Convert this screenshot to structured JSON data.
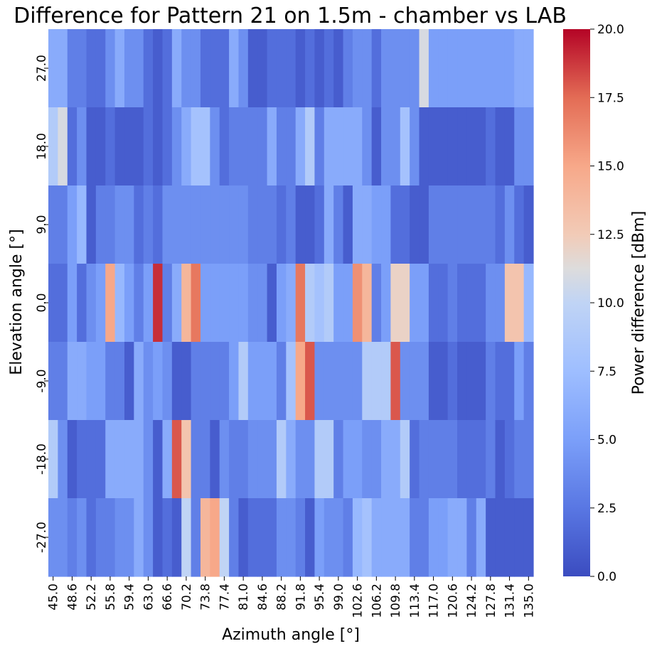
{
  "chart_data": {
    "type": "heatmap",
    "title": "Difference for Pattern 21 on 1.5m - chamber vs LAB",
    "xlabel": "Azimuth angle [°]",
    "ylabel": "Elevation angle [°]",
    "colorbar_label": "Power difference [dBm]",
    "colormap": "coolwarm",
    "vmin": 0.0,
    "vmax": 20.0,
    "x_tick_labels": [
      "45.0",
      "48.6",
      "52.2",
      "55.8",
      "59.4",
      "63.0",
      "66.6",
      "70.2",
      "73.8",
      "77.4",
      "81.0",
      "84.6",
      "88.2",
      "91.8",
      "95.4",
      "99.0",
      "102.6",
      "106.2",
      "109.8",
      "113.4",
      "117.0",
      "120.6",
      "124.2",
      "127.8",
      "131.4",
      "135.0"
    ],
    "y_tick_labels": [
      "27.0",
      "18.0",
      "9.0",
      "0.0",
      "-9.0",
      "-18.0",
      "-27.0"
    ],
    "colorbar_ticks": [
      "0.0",
      "2.5",
      "5.0",
      "7.5",
      "10.0",
      "12.5",
      "15.0",
      "17.5",
      "20.0"
    ],
    "azimuth_values": [
      45.0,
      46.8,
      48.6,
      50.4,
      52.2,
      54.0,
      55.8,
      57.6,
      59.4,
      61.2,
      63.0,
      64.8,
      66.6,
      68.4,
      70.2,
      72.0,
      73.8,
      75.6,
      77.4,
      79.2,
      81.0,
      82.8,
      84.6,
      86.4,
      88.2,
      90.0,
      91.8,
      93.6,
      95.4,
      97.2,
      99.0,
      100.8,
      102.6,
      104.4,
      106.2,
      108.0,
      109.8,
      111.6,
      113.4,
      115.2,
      117.0,
      118.8,
      120.6,
      122.4,
      124.2,
      126.0,
      127.8,
      129.6,
      131.4,
      133.2,
      135.0
    ],
    "elevation_values": [
      27.0,
      18.0,
      9.0,
      0.0,
      -9.0,
      -18.0,
      -27.0
    ],
    "values": [
      [
        6,
        6,
        3,
        3,
        2,
        2,
        4,
        6,
        4,
        4,
        2,
        1,
        2,
        6,
        4,
        4,
        2,
        2,
        2,
        6,
        4,
        1,
        1,
        2,
        2,
        2,
        1,
        2,
        1,
        2,
        1,
        3,
        4,
        4,
        2,
        4,
        4,
        4,
        4,
        11,
        5,
        5,
        5,
        5,
        5,
        5,
        5,
        5,
        5,
        6,
        6
      ],
      [
        9,
        11,
        2,
        4,
        1,
        1,
        2,
        1,
        1,
        1,
        2,
        1,
        2,
        4,
        6,
        8,
        8,
        4,
        2,
        3,
        3,
        3,
        3,
        6,
        3,
        3,
        6,
        9,
        3,
        6,
        6,
        6,
        6,
        4,
        1,
        4,
        4,
        8,
        4,
        1,
        1,
        1,
        1,
        1,
        1,
        1,
        2,
        1,
        1,
        4,
        4
      ],
      [
        3,
        3,
        5,
        7,
        1,
        3,
        3,
        4,
        4,
        2,
        3,
        2,
        4,
        4,
        4,
        4,
        4,
        4,
        4,
        4,
        4,
        3,
        3,
        3,
        2,
        3,
        1,
        1,
        2,
        6,
        3,
        1,
        6,
        6,
        5,
        5,
        2,
        2,
        1,
        1,
        3,
        3,
        3,
        3,
        3,
        3,
        3,
        2,
        4,
        2,
        1
      ],
      [
        2,
        2,
        5,
        2,
        4,
        5,
        15,
        7,
        5,
        3,
        5,
        19,
        3,
        6,
        14,
        17,
        5,
        5,
        5,
        5,
        5,
        4,
        4,
        1,
        5,
        6,
        17,
        9,
        8,
        9,
        5,
        5,
        16,
        14,
        3,
        5,
        12,
        12,
        5,
        5,
        2,
        2,
        3,
        2,
        2,
        2,
        4,
        4,
        13,
        13,
        7
      ],
      [
        3,
        3,
        6,
        6,
        5,
        5,
        3,
        3,
        1,
        6,
        4,
        5,
        4,
        1,
        1,
        3,
        3,
        3,
        3,
        5,
        9,
        5,
        5,
        5,
        3,
        8,
        15,
        18,
        4,
        4,
        4,
        4,
        4,
        9,
        9,
        9,
        18,
        4,
        4,
        4,
        1,
        1,
        2,
        1,
        1,
        1,
        3,
        2,
        2,
        5,
        3
      ],
      [
        9,
        4,
        1,
        2,
        2,
        2,
        6,
        6,
        6,
        6,
        4,
        1,
        6,
        18,
        13,
        3,
        3,
        1,
        4,
        3,
        3,
        4,
        4,
        4,
        9,
        6,
        4,
        4,
        9,
        9,
        3,
        5,
        5,
        4,
        4,
        6,
        6,
        9,
        2,
        3,
        3,
        3,
        3,
        2,
        2,
        2,
        3,
        1,
        2,
        3,
        3
      ],
      [
        4,
        4,
        3,
        4,
        2,
        3,
        3,
        4,
        4,
        6,
        4,
        1,
        2,
        1,
        10,
        3,
        14,
        15,
        10,
        3,
        1,
        2,
        2,
        2,
        4,
        4,
        3,
        1,
        5,
        4,
        4,
        3,
        7,
        8,
        6,
        6,
        6,
        6,
        3,
        3,
        5,
        5,
        6,
        6,
        3,
        6,
        1,
        1,
        1,
        1,
        1
      ]
    ]
  }
}
